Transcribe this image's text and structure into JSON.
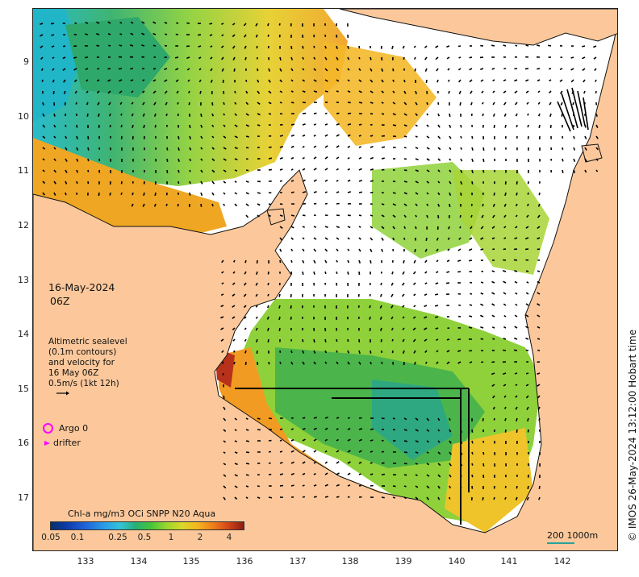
{
  "map": {
    "date_line1": "16-May-2024",
    "date_line2": "06Z",
    "altimetry_lines": [
      "Altimetric sealevel",
      "(0.1m contours)",
      "and velocity for",
      "16 May 06Z",
      "0.5m/s (1kt 12h)"
    ],
    "legend": {
      "argo_label": "Argo 0",
      "drifter_label": "drifter",
      "marker_color": "#ff00ff"
    },
    "colorbar": {
      "title": "Chl-a mg/m3 OCi SNPP N20 Aqua",
      "ticks": [
        "0.05",
        "0.1",
        "0.25",
        "0.5",
        "1",
        "2",
        "4"
      ],
      "tick_values": [
        0.05,
        0.1,
        0.25,
        0.5,
        1,
        2,
        4
      ]
    },
    "scale_bar_label": "200  1000m",
    "credit": "© IMOS 26-May-2024 13:12:00 Hobart time",
    "latitude_labels": [
      "9",
      "10",
      "11",
      "12",
      "13",
      "14",
      "15",
      "16",
      "17"
    ],
    "latitude_values": [
      -9,
      -10,
      -11,
      -12,
      -13,
      -14,
      -15,
      -16,
      -17
    ],
    "longitude_labels": [
      "133",
      "134",
      "135",
      "136",
      "137",
      "138",
      "139",
      "140",
      "141",
      "142"
    ],
    "longitude_values": [
      133,
      134,
      135,
      136,
      137,
      138,
      139,
      140,
      141,
      142
    ],
    "colors": {
      "land": "#fcc89b",
      "coast": "#111111",
      "arrow": "#000000"
    }
  }
}
